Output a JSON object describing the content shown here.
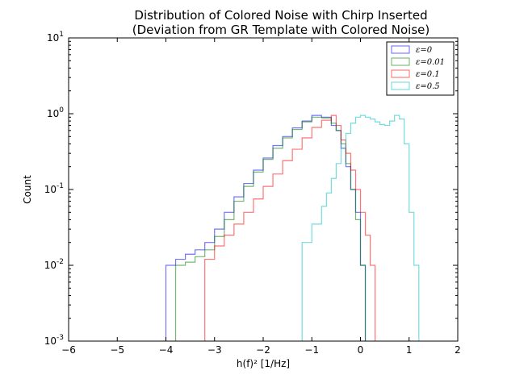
{
  "chart_data": {
    "type": "histogram",
    "title_line1": "Distribution of Colored Noise with Chirp Inserted",
    "title_line2": "(Deviation from GR Template with Colored Noise)",
    "xlabel": "h(f)² [1/Hz]",
    "ylabel": "Count",
    "xscale": "linear",
    "yscale": "log",
    "xlim": [
      -6,
      2
    ],
    "ylim": [
      0.001,
      10
    ],
    "x_ticks": [
      "−6",
      "−5",
      "−4",
      "−3",
      "−2",
      "−1",
      "0",
      "1",
      "2"
    ],
    "y_ticks": [
      {
        "value": 10,
        "base": "10",
        "exp": "1"
      },
      {
        "value": 1,
        "base": "10",
        "exp": "0"
      },
      {
        "value": 0.1,
        "base": "10",
        "exp": "-1"
      },
      {
        "value": 0.01,
        "base": "10",
        "exp": "-2"
      },
      {
        "value": 0.001,
        "base": "10",
        "exp": "-3"
      }
    ],
    "legend_position": "top-right",
    "series": [
      {
        "name": "ε=0",
        "color": "#0000ff",
        "x": [
          -4.0,
          -3.8,
          -3.6,
          -3.4,
          -3.2,
          -3.0,
          -2.8,
          -2.6,
          -2.4,
          -2.2,
          -2.0,
          -1.8,
          -1.6,
          -1.4,
          -1.2,
          -1.0,
          -0.8,
          -0.6,
          -0.5,
          -0.4,
          -0.3,
          -0.2,
          -0.1,
          0.0
        ],
        "y": [
          0.01,
          0.012,
          0.014,
          0.016,
          0.02,
          0.03,
          0.05,
          0.08,
          0.12,
          0.18,
          0.26,
          0.38,
          0.5,
          0.65,
          0.8,
          0.95,
          0.9,
          0.7,
          0.6,
          0.35,
          0.2,
          0.1,
          0.05,
          0.01
        ]
      },
      {
        "name": "ε=0.01",
        "color": "#008000",
        "x": [
          -3.8,
          -3.6,
          -3.4,
          -3.2,
          -3.0,
          -2.8,
          -2.6,
          -2.4,
          -2.2,
          -2.0,
          -1.8,
          -1.6,
          -1.4,
          -1.2,
          -1.0,
          -0.8,
          -0.6,
          -0.5,
          -0.4,
          -0.3,
          -0.2,
          -0.1,
          0.0
        ],
        "y": [
          0.01,
          0.011,
          0.013,
          0.016,
          0.024,
          0.04,
          0.07,
          0.11,
          0.17,
          0.25,
          0.35,
          0.48,
          0.62,
          0.78,
          0.9,
          0.88,
          0.75,
          0.6,
          0.4,
          0.22,
          0.1,
          0.04,
          0.01
        ]
      },
      {
        "name": "ε=0.1",
        "color": "#ff0000",
        "x": [
          -3.2,
          -3.0,
          -2.8,
          -2.6,
          -2.4,
          -2.2,
          -2.0,
          -1.8,
          -1.6,
          -1.4,
          -1.2,
          -1.0,
          -0.8,
          -0.6,
          -0.5,
          -0.4,
          -0.3,
          -0.2,
          -0.1,
          0.0,
          0.1,
          0.2
        ],
        "y": [
          0.012,
          0.018,
          0.025,
          0.035,
          0.05,
          0.075,
          0.11,
          0.16,
          0.24,
          0.34,
          0.48,
          0.66,
          0.82,
          0.95,
          0.7,
          0.45,
          0.3,
          0.18,
          0.1,
          0.05,
          0.025,
          0.01
        ]
      },
      {
        "name": "ε=0.5",
        "color": "#00c0c0",
        "x": [
          -1.2,
          -1.0,
          -0.8,
          -0.7,
          -0.6,
          -0.5,
          -0.4,
          -0.3,
          -0.2,
          -0.1,
          0.0,
          0.1,
          0.2,
          0.3,
          0.4,
          0.5,
          0.6,
          0.7,
          0.8,
          0.9,
          1.0,
          1.1
        ],
        "y": [
          0.02,
          0.035,
          0.06,
          0.09,
          0.14,
          0.22,
          0.35,
          0.55,
          0.75,
          0.9,
          0.95,
          0.9,
          0.85,
          0.78,
          0.72,
          0.7,
          0.8,
          0.95,
          0.85,
          0.4,
          0.05,
          0.01
        ]
      }
    ]
  }
}
